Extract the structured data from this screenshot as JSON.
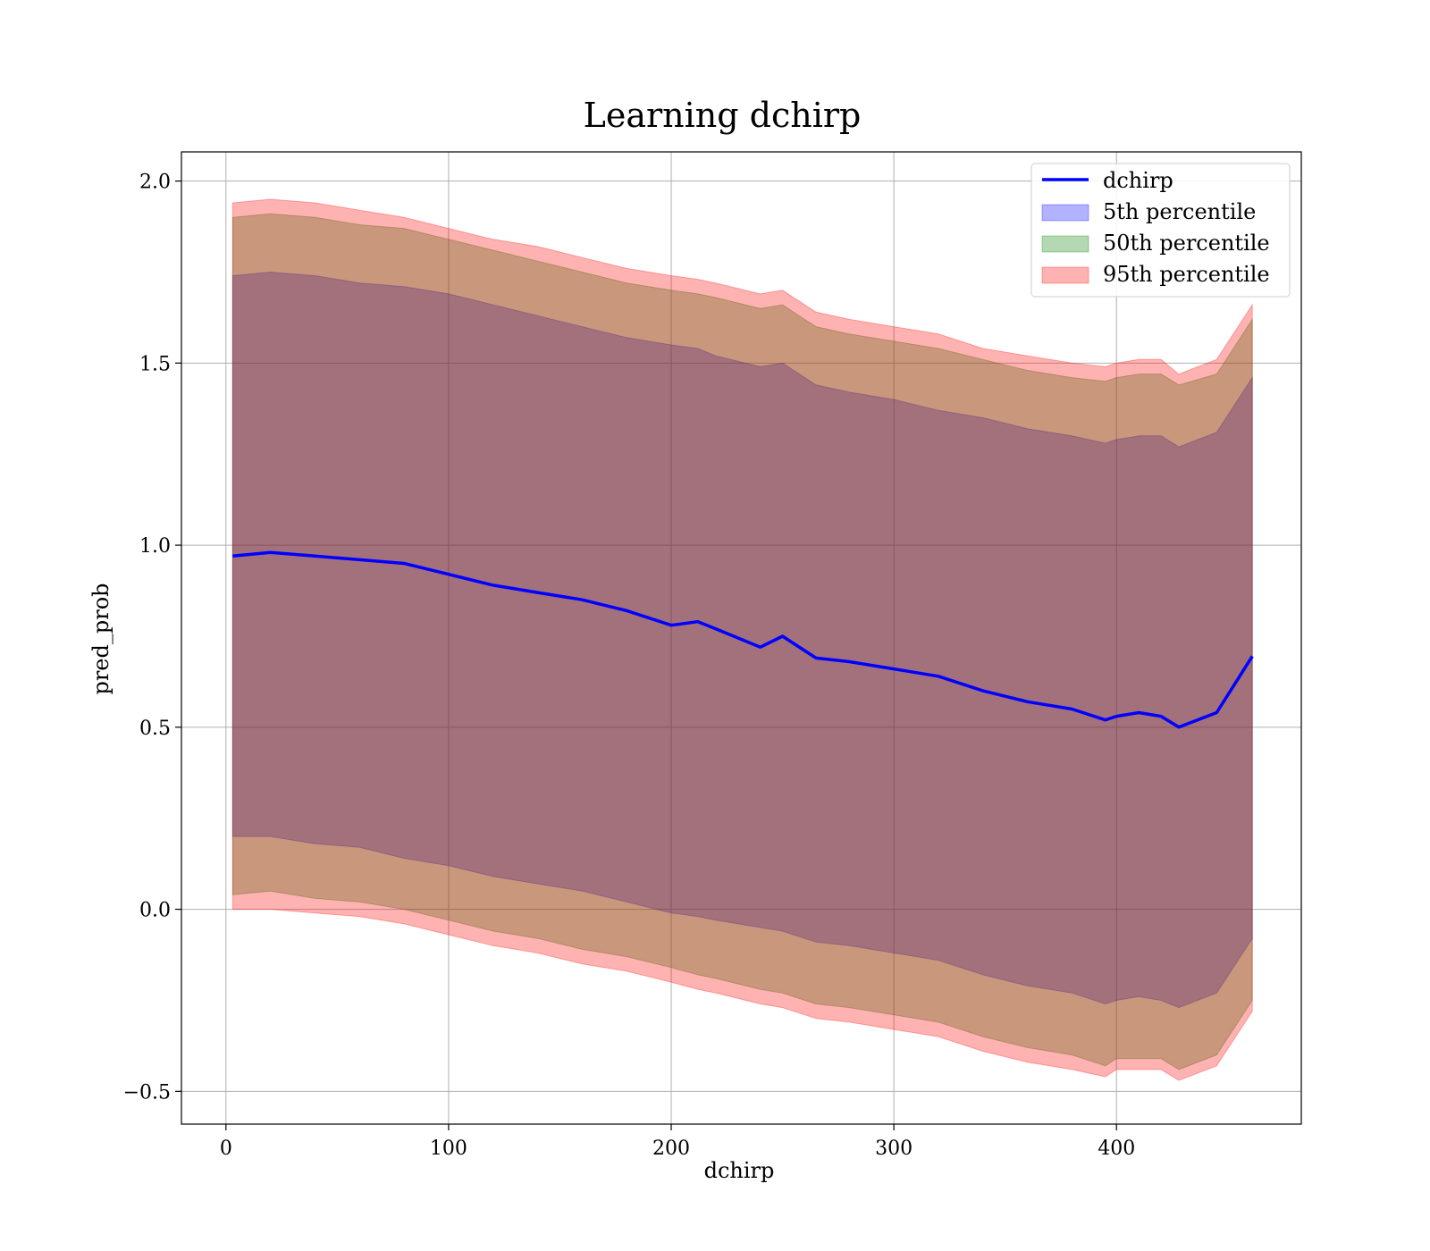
{
  "chart_data": {
    "type": "area",
    "title": "Learning dchirp",
    "xlabel": "dchirp",
    "ylabel": "pred_prob",
    "xlim": [
      -20,
      483
    ],
    "ylim": [
      -0.59,
      2.08
    ],
    "x_ticks": [
      0,
      100,
      200,
      300,
      400
    ],
    "x_tick_labels": [
      "0",
      "100",
      "200",
      "300",
      "400"
    ],
    "y_ticks": [
      -0.5,
      0.0,
      0.5,
      1.0,
      1.5,
      2.0
    ],
    "y_tick_labels": [
      "−0.5",
      "0.0",
      "0.5",
      "1.0",
      "1.5",
      "2.0"
    ],
    "grid": true,
    "legend_position": "top-right",
    "x": [
      3,
      20,
      40,
      60,
      80,
      100,
      120,
      140,
      160,
      180,
      200,
      212,
      220,
      240,
      250,
      255,
      265,
      280,
      300,
      320,
      340,
      360,
      380,
      395,
      400,
      410,
      420,
      428,
      445,
      461
    ],
    "series": [
      {
        "name": "dchirp",
        "kind": "line",
        "color": "#0000ff",
        "values": [
          0.97,
          0.98,
          0.97,
          0.96,
          0.95,
          0.92,
          0.89,
          0.87,
          0.85,
          0.82,
          0.78,
          0.79,
          0.77,
          0.72,
          0.75,
          0.73,
          0.69,
          0.68,
          0.66,
          0.64,
          0.6,
          0.57,
          0.55,
          0.52,
          0.53,
          0.54,
          0.53,
          0.5,
          0.54,
          0.695
        ]
      },
      {
        "name": "5th percentile",
        "kind": "band",
        "color": "#0000ff",
        "lower": [
          0.2,
          0.2,
          0.18,
          0.17,
          0.14,
          0.12,
          0.09,
          0.07,
          0.05,
          0.02,
          -0.01,
          -0.02,
          -0.03,
          -0.05,
          -0.06,
          -0.07,
          -0.09,
          -0.1,
          -0.12,
          -0.14,
          -0.18,
          -0.21,
          -0.23,
          -0.26,
          -0.25,
          -0.24,
          -0.25,
          -0.27,
          -0.23,
          -0.08
        ],
        "upper": [
          1.74,
          1.75,
          1.74,
          1.72,
          1.71,
          1.69,
          1.66,
          1.63,
          1.6,
          1.57,
          1.55,
          1.54,
          1.52,
          1.49,
          1.5,
          1.48,
          1.44,
          1.42,
          1.4,
          1.37,
          1.35,
          1.32,
          1.3,
          1.28,
          1.29,
          1.3,
          1.3,
          1.27,
          1.31,
          1.46
        ]
      },
      {
        "name": "50th percentile",
        "kind": "band",
        "color": "#008000",
        "lower": [
          0.04,
          0.05,
          0.03,
          0.02,
          0.0,
          -0.03,
          -0.06,
          -0.08,
          -0.11,
          -0.13,
          -0.16,
          -0.18,
          -0.19,
          -0.22,
          -0.23,
          -0.24,
          -0.26,
          -0.27,
          -0.29,
          -0.31,
          -0.35,
          -0.38,
          -0.4,
          -0.43,
          -0.41,
          -0.41,
          -0.41,
          -0.44,
          -0.4,
          -0.25
        ],
        "upper": [
          1.9,
          1.91,
          1.9,
          1.88,
          1.87,
          1.84,
          1.81,
          1.78,
          1.75,
          1.72,
          1.7,
          1.69,
          1.68,
          1.65,
          1.66,
          1.64,
          1.6,
          1.58,
          1.56,
          1.54,
          1.51,
          1.48,
          1.46,
          1.45,
          1.46,
          1.47,
          1.47,
          1.44,
          1.47,
          1.62
        ]
      },
      {
        "name": "95th percentile",
        "kind": "band",
        "color": "#ff0000",
        "lower": [
          0.0,
          0.0,
          -0.01,
          -0.02,
          -0.04,
          -0.07,
          -0.1,
          -0.12,
          -0.15,
          -0.17,
          -0.2,
          -0.22,
          -0.23,
          -0.26,
          -0.27,
          -0.28,
          -0.3,
          -0.31,
          -0.33,
          -0.35,
          -0.39,
          -0.42,
          -0.44,
          -0.46,
          -0.44,
          -0.44,
          -0.44,
          -0.47,
          -0.43,
          -0.28
        ],
        "upper": [
          1.94,
          1.95,
          1.94,
          1.92,
          1.9,
          1.87,
          1.84,
          1.82,
          1.79,
          1.76,
          1.74,
          1.73,
          1.72,
          1.69,
          1.7,
          1.68,
          1.64,
          1.62,
          1.6,
          1.58,
          1.54,
          1.52,
          1.5,
          1.49,
          1.5,
          1.51,
          1.51,
          1.47,
          1.51,
          1.66
        ]
      }
    ]
  }
}
